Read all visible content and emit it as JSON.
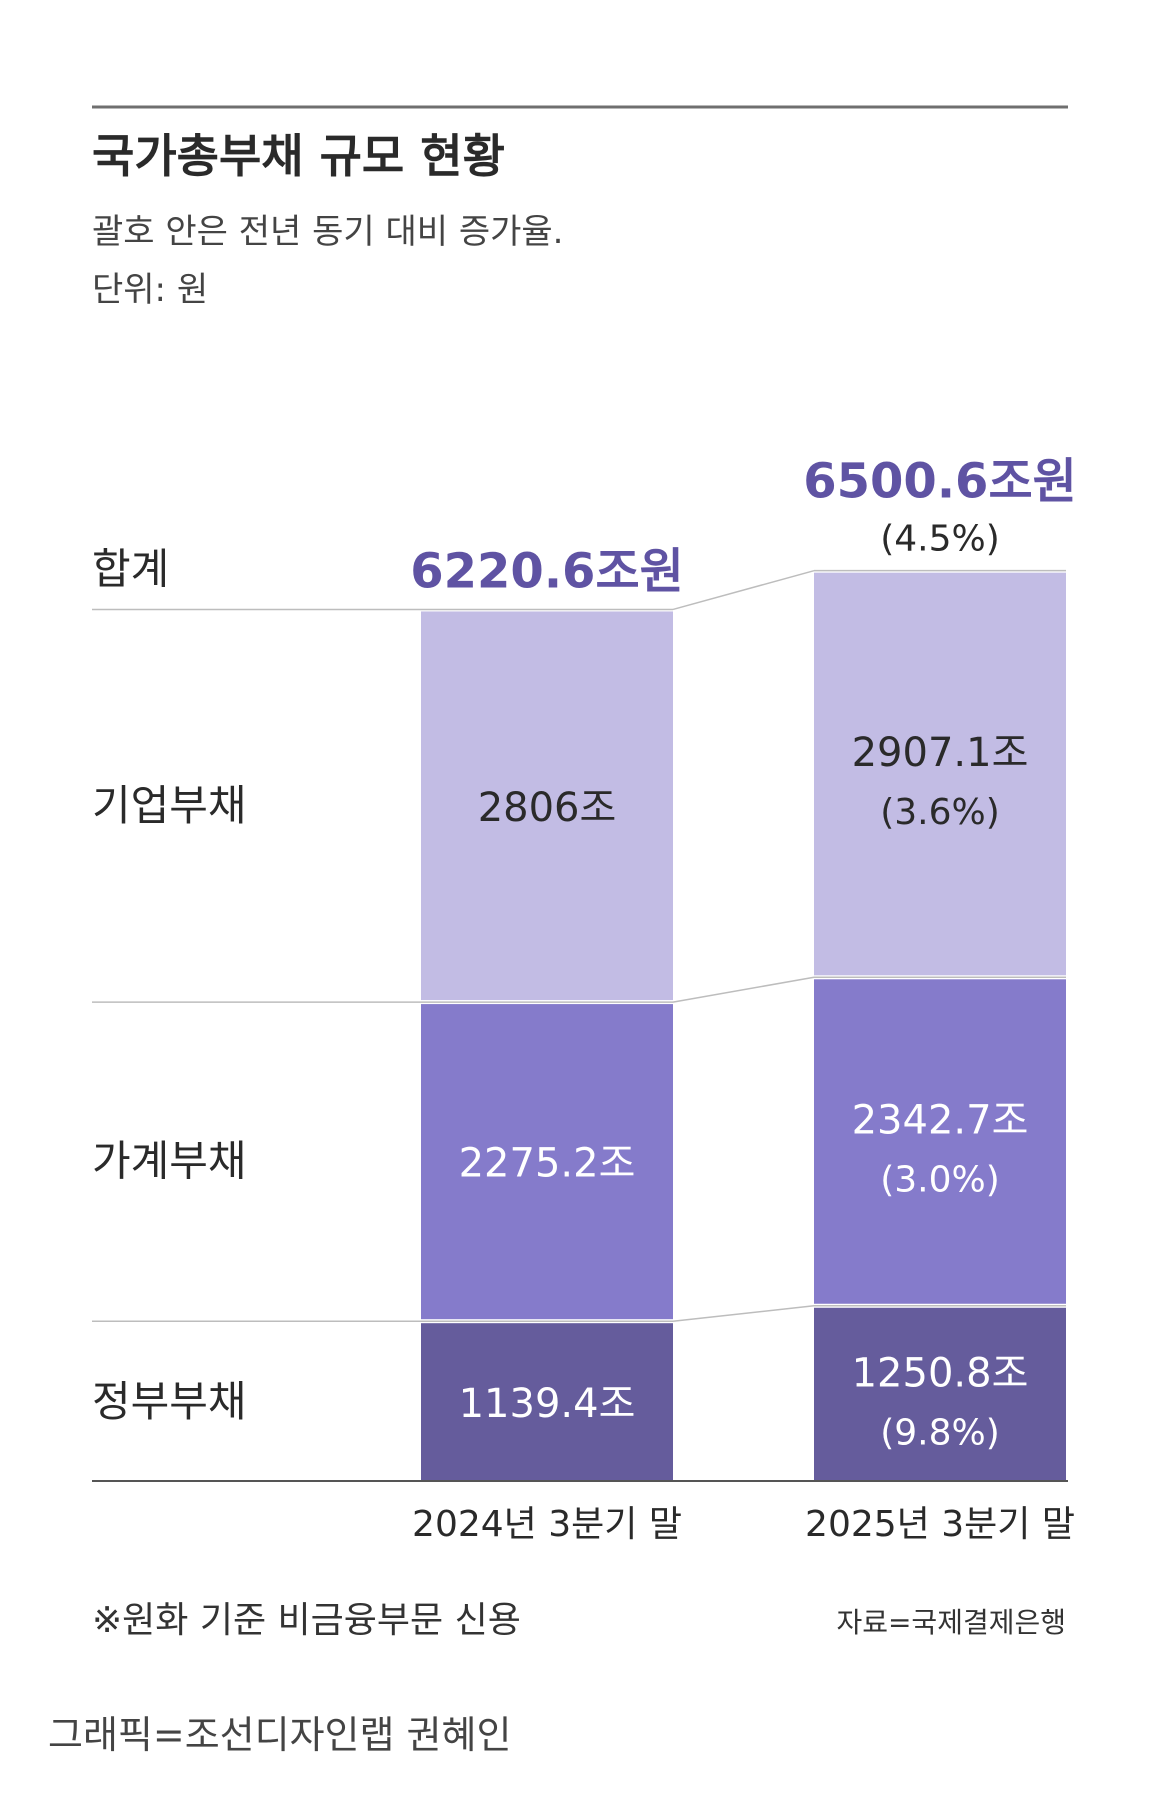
{
  "chart_data": {
    "type": "bar",
    "title": "국가총부채 규모 현황",
    "subtitle": "괄호 안은 전년 동기 대비 증가율.",
    "unit": "단위: 원",
    "row_labels": [
      "합계",
      "기업부채",
      "가계부채",
      "정부부채"
    ],
    "categories": [
      "2024년 3분기 말",
      "2025년 3분기 말"
    ],
    "series": [
      {
        "name": "기업부채",
        "values": [
          2806,
          2907.1
        ],
        "labels": [
          "2806조",
          "2907.1조"
        ],
        "growth": [
          "",
          "(3.6%)"
        ],
        "color": "#c2bce4"
      },
      {
        "name": "가계부채",
        "values": [
          2275.2,
          2342.7
        ],
        "labels": [
          "2275.2조",
          "2342.7조"
        ],
        "growth": [
          "",
          "(3.0%)"
        ],
        "color": "#857bcb"
      },
      {
        "name": "정부부채",
        "values": [
          1139.4,
          1250.8
        ],
        "labels": [
          "1139.4조",
          "1250.8조"
        ],
        "growth": [
          "",
          "(9.8%)"
        ],
        "color": "#655c9c"
      }
    ],
    "totals": {
      "values": [
        6220.6,
        6500.6
      ],
      "labels": [
        "6220.6조원",
        "6500.6조원"
      ],
      "growth": [
        "",
        "(4.5%)"
      ],
      "color": "#5f53a3"
    },
    "note": "※원화 기준 비금융부문 신용",
    "source": "자료=국제결제은행"
  },
  "credit": "그래픽=조선디자인랩 권혜인"
}
